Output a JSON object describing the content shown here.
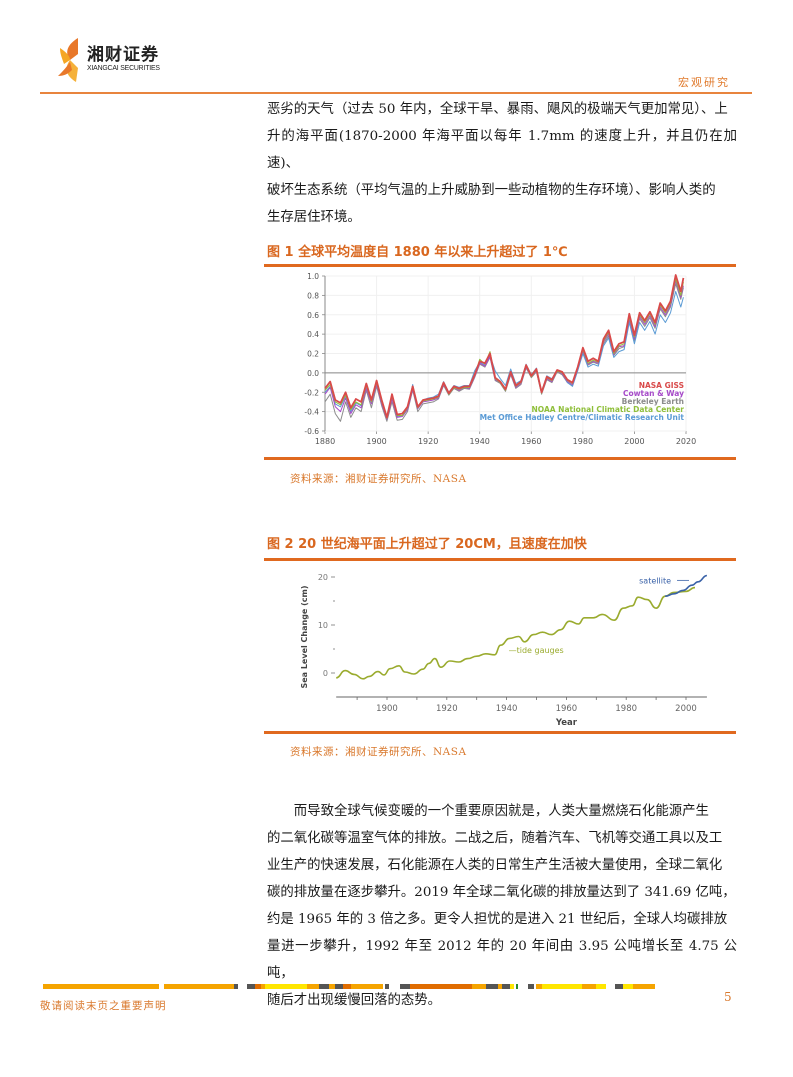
{
  "header": {
    "logo_cn": "湘财证券",
    "logo_en": "XIANGCAI SECURITIES",
    "section_tag": "宏观研究"
  },
  "intro_paragraph": [
    "恶劣的天气（过去 50 年内，全球干旱、暴雨、飓风的极端天气更加常见）、上",
    "升的海平面(1870-2000 年海平面以每年 1.7mm 的速度上升，并且仍在加速)、",
    "破坏生态系统（平均气温的上升威胁到一些动植物的生存环境）、影响人类的",
    "生存居住环境。"
  ],
  "figure1": {
    "title": "图 1  全球平均温度自 1880 年以来上升超过了 1℃",
    "source": "资料来源：湘财证券研究所、NASA"
  },
  "figure2": {
    "title": "图 2 20 世纪海平面上升超过了 20CM，且速度在加快",
    "source": "资料来源：湘财证券研究所、NASA"
  },
  "body_paragraph": [
    "而导致全球气候变暖的一个重要原因就是，人类大量燃烧石化能源产生",
    "的二氧化碳等温室气体的排放。二战之后，随着汽车、飞机等交通工具以及工",
    "业生产的快速发展，石化能源在人类的日常生产生活被大量使用，全球二氧化",
    "碳的排放量在逐步攀升。2019 年全球二氧化碳的排放量达到了 341.69 亿吨，",
    "约是 1965 年的 3 倍之多。更令人担忧的是进入 21 世纪后，全球人均碳排放",
    "量进一步攀升，1992 年至 2012 年的 20 年间由 3.95 公吨增长至 4.75 公吨，",
    "随后才出现缓慢回落的态势。"
  ],
  "footer": {
    "note": "敬请阅读末页之重要声明",
    "page_number": "5"
  },
  "colors": {
    "accent_orange": "#e0691f",
    "nasa": "#d94a4a",
    "cowtan": "#a64ac9",
    "berkeley": "#8c8c8c",
    "noaa": "#8fbf3a",
    "met": "#5b9bd5",
    "tide": "#9aab2e",
    "satellite": "#3a62a8"
  },
  "chart_data": [
    {
      "type": "line",
      "title": "全球平均温度自 1880 年以来上升超过了 1℃",
      "xlabel": "",
      "ylabel": "",
      "xlim": [
        1880,
        2020
      ],
      "ylim": [
        -0.6,
        1.0
      ],
      "x_ticks": [
        "1880",
        "1900",
        "1920",
        "1940",
        "1960",
        "1980",
        "2000",
        "2020"
      ],
      "y_ticks": [
        "1.0",
        "0.8",
        "0.6",
        "0.4",
        "0.2",
        "0.0",
        "-0.2",
        "-0.4",
        "-0.6"
      ],
      "grid": true,
      "legend_position": "lower-right",
      "x": [
        1880,
        1882,
        1884,
        1886,
        1888,
        1890,
        1892,
        1894,
        1896,
        1898,
        1900,
        1902,
        1904,
        1906,
        1908,
        1910,
        1912,
        1914,
        1916,
        1918,
        1920,
        1922,
        1924,
        1926,
        1928,
        1930,
        1932,
        1934,
        1936,
        1938,
        1940,
        1942,
        1944,
        1946,
        1948,
        1950,
        1952,
        1954,
        1956,
        1958,
        1960,
        1962,
        1964,
        1966,
        1968,
        1970,
        1972,
        1974,
        1976,
        1978,
        1980,
        1982,
        1984,
        1986,
        1988,
        1990,
        1992,
        1994,
        1996,
        1998,
        2000,
        2002,
        2004,
        2006,
        2008,
        2010,
        2012,
        2014,
        2016,
        2018,
        2019
      ],
      "series": [
        {
          "name": "NASA GISS",
          "values": [
            -0.16,
            -0.09,
            -0.28,
            -0.31,
            -0.2,
            -0.36,
            -0.27,
            -0.3,
            -0.11,
            -0.28,
            -0.08,
            -0.28,
            -0.46,
            -0.22,
            -0.43,
            -0.42,
            -0.35,
            -0.14,
            -0.35,
            -0.28,
            -0.27,
            -0.26,
            -0.24,
            -0.1,
            -0.21,
            -0.14,
            -0.16,
            -0.14,
            -0.14,
            -0.02,
            0.12,
            0.1,
            0.2,
            -0.05,
            -0.09,
            -0.17,
            0.01,
            -0.13,
            -0.09,
            0.08,
            -0.03,
            0.04,
            -0.2,
            -0.04,
            -0.07,
            0.03,
            0.01,
            -0.07,
            -0.1,
            0.06,
            0.26,
            0.12,
            0.15,
            0.12,
            0.35,
            0.44,
            0.22,
            0.3,
            0.32,
            0.61,
            0.39,
            0.62,
            0.54,
            0.63,
            0.52,
            0.72,
            0.64,
            0.74,
            1.01,
            0.84,
            0.98
          ]
        },
        {
          "name": "Cowtan & Way",
          "values": [
            -0.22,
            -0.15,
            -0.35,
            -0.4,
            -0.26,
            -0.42,
            -0.33,
            -0.36,
            -0.16,
            -0.32,
            -0.12,
            -0.32,
            -0.48,
            -0.27,
            -0.46,
            -0.45,
            -0.38,
            -0.17,
            -0.37,
            -0.3,
            -0.29,
            -0.28,
            -0.26,
            -0.12,
            -0.22,
            -0.15,
            -0.18,
            -0.15,
            -0.16,
            -0.04,
            0.1,
            0.07,
            0.17,
            -0.07,
            -0.1,
            -0.18,
            -0.01,
            -0.15,
            -0.11,
            0.06,
            -0.04,
            0.02,
            -0.21,
            -0.06,
            -0.09,
            0.02,
            -0.01,
            -0.09,
            -0.12,
            0.04,
            0.23,
            0.09,
            0.12,
            0.1,
            0.32,
            0.4,
            0.19,
            0.27,
            0.28,
            0.56,
            0.35,
            0.58,
            0.5,
            0.59,
            0.48,
            0.68,
            0.6,
            0.7,
            0.95,
            0.78,
            0.9
          ]
        },
        {
          "name": "Berkeley Earth",
          "values": [
            -0.3,
            -0.22,
            -0.42,
            -0.5,
            -0.3,
            -0.46,
            -0.36,
            -0.4,
            -0.18,
            -0.36,
            -0.14,
            -0.34,
            -0.5,
            -0.3,
            -0.49,
            -0.48,
            -0.4,
            -0.18,
            -0.4,
            -0.32,
            -0.31,
            -0.3,
            -0.27,
            -0.13,
            -0.23,
            -0.16,
            -0.19,
            -0.16,
            -0.17,
            -0.05,
            0.09,
            0.06,
            0.16,
            -0.08,
            -0.11,
            -0.19,
            -0.02,
            -0.16,
            -0.12,
            0.05,
            -0.05,
            0.01,
            -0.22,
            -0.07,
            -0.1,
            0.01,
            -0.02,
            -0.1,
            -0.13,
            0.03,
            0.22,
            0.08,
            0.11,
            0.09,
            0.3,
            0.38,
            0.18,
            0.25,
            0.27,
            0.54,
            0.33,
            0.56,
            0.48,
            0.57,
            0.46,
            0.66,
            0.58,
            0.68,
            0.92,
            0.76,
            0.88
          ]
        },
        {
          "name": "NOAA National Climatic Data Center",
          "values": [
            -0.18,
            -0.12,
            -0.3,
            -0.33,
            -0.23,
            -0.38,
            -0.3,
            -0.33,
            -0.13,
            -0.3,
            -0.1,
            -0.3,
            -0.47,
            -0.24,
            -0.44,
            -0.44,
            -0.36,
            -0.15,
            -0.36,
            -0.29,
            -0.28,
            -0.27,
            -0.25,
            -0.11,
            -0.22,
            -0.15,
            -0.17,
            -0.15,
            -0.15,
            -0.03,
            0.14,
            0.09,
            0.22,
            -0.06,
            -0.1,
            -0.18,
            0.0,
            -0.14,
            -0.1,
            0.07,
            -0.04,
            0.03,
            -0.21,
            -0.05,
            -0.08,
            0.02,
            0.0,
            -0.08,
            -0.11,
            0.05,
            0.24,
            0.1,
            0.13,
            0.11,
            0.33,
            0.42,
            0.2,
            0.28,
            0.3,
            0.58,
            0.37,
            0.6,
            0.52,
            0.61,
            0.5,
            0.7,
            0.62,
            0.72,
            0.97,
            0.8,
            0.94
          ]
        },
        {
          "name": "Met Office Hadley Centre/Climatic Research Unit",
          "values": [
            -0.2,
            -0.14,
            -0.32,
            -0.35,
            -0.24,
            -0.4,
            -0.31,
            -0.34,
            -0.14,
            -0.31,
            -0.11,
            -0.31,
            -0.47,
            -0.25,
            -0.45,
            -0.44,
            -0.37,
            -0.12,
            -0.36,
            -0.28,
            -0.26,
            -0.25,
            -0.22,
            -0.09,
            -0.2,
            -0.13,
            -0.15,
            -0.13,
            -0.13,
            0.02,
            0.11,
            0.08,
            0.18,
            0.02,
            -0.06,
            -0.13,
            0.04,
            -0.11,
            -0.08,
            0.09,
            -0.02,
            0.05,
            -0.19,
            -0.03,
            -0.06,
            0.03,
            0.0,
            -0.1,
            -0.14,
            0.02,
            0.2,
            0.06,
            0.09,
            0.07,
            0.28,
            0.36,
            0.16,
            0.22,
            0.24,
            0.52,
            0.3,
            0.52,
            0.44,
            0.53,
            0.4,
            0.6,
            0.52,
            0.62,
            0.84,
            0.68,
            0.78
          ]
        }
      ]
    },
    {
      "type": "line",
      "title": "20 世纪海平面上升超过了 20CM，且速度在加快",
      "xlabel": "Year",
      "ylabel": "Sea Level Change (cm)",
      "xlim": [
        1883,
        2007
      ],
      "ylim": [
        -5,
        22
      ],
      "x_ticks": [
        "1900",
        "1920",
        "1940",
        "1960",
        "1980",
        "2000"
      ],
      "y_ticks": [
        "20",
        "10",
        "0"
      ],
      "grid": false,
      "legend_position": "inline",
      "series": [
        {
          "name": "tide gauges",
          "x": [
            1883,
            1886,
            1889,
            1892,
            1894,
            1897,
            1899,
            1901,
            1904,
            1906,
            1909,
            1912,
            1914,
            1916,
            1918,
            1921,
            1924,
            1927,
            1930,
            1933,
            1936,
            1938,
            1941,
            1944,
            1946,
            1949,
            1952,
            1955,
            1958,
            1961,
            1964,
            1966,
            1969,
            1972,
            1976,
            1979,
            1982,
            1984,
            1987,
            1990,
            1993,
            1996,
            2000,
            2003
          ],
          "values": [
            -1.0,
            0.5,
            -0.3,
            -1.2,
            -0.7,
            0.3,
            -0.4,
            0.9,
            1.5,
            0.2,
            -0.2,
            0.8,
            2.0,
            3.0,
            1.2,
            2.5,
            2.3,
            3.0,
            3.5,
            4.0,
            3.8,
            5.8,
            7.2,
            7.6,
            6.5,
            8.0,
            8.5,
            8.0,
            9.0,
            10.8,
            10.2,
            11.5,
            11.5,
            12.2,
            11.0,
            13.5,
            14.0,
            15.8,
            15.3,
            13.5,
            16.0,
            16.8,
            17.0,
            17.8
          ]
        },
        {
          "name": "satellite",
          "x": [
            1993,
            1996,
            1999,
            2002,
            2004,
            2007
          ],
          "values": [
            16.0,
            16.5,
            17.2,
            18.3,
            19.0,
            20.3
          ]
        }
      ]
    }
  ]
}
